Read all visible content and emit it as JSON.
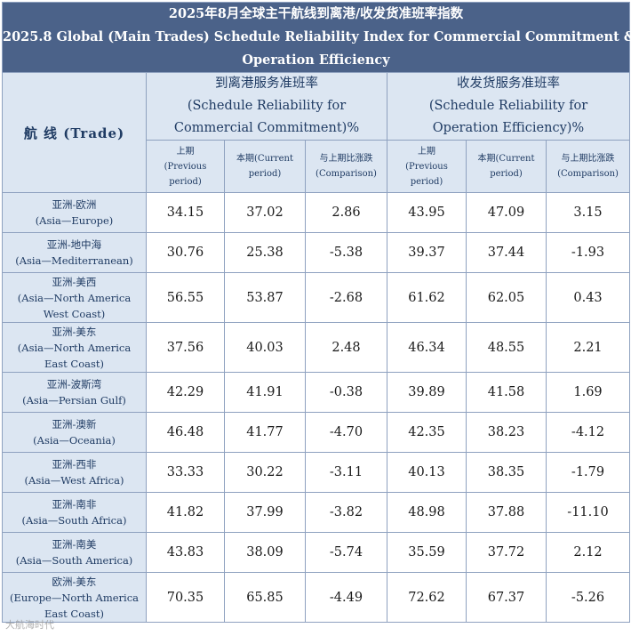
{
  "title": {
    "zh": "2025年8月全球主干航线到离港/收发货准班率指数",
    "en_line1": "2025.8 Global (Main Trades) Schedule Reliability Index for Commercial Commitment &",
    "en_line2": "Operation Efficiency"
  },
  "header": {
    "trade": "航 线 (Trade)",
    "groups": [
      {
        "zh": "到离港服务准班率",
        "en1": "(Schedule Reliability for",
        "en2": "Commercial Commitment)%"
      },
      {
        "zh": "收发货服务准班率",
        "en1": "(Schedule Reliability for",
        "en2": "Operation Efficiency)%"
      }
    ],
    "sub": [
      {
        "l1": "上期",
        "l2": "(Previous",
        "l3": "period)"
      },
      {
        "l1": "本期(Current",
        "l2": "period)",
        "l3": ""
      },
      {
        "l1": "与上期比涨跌",
        "l2": "(Comparison)",
        "l3": ""
      }
    ]
  },
  "rows": [
    {
      "zh": "亚洲-欧洲",
      "en": [
        "(Asia—Europe)"
      ],
      "v": [
        "34.15",
        "37.02",
        "2.86",
        "43.95",
        "47.09",
        "3.15"
      ]
    },
    {
      "zh": "亚洲-地中海",
      "en": [
        "(Asia—Mediterranean)"
      ],
      "v": [
        "30.76",
        "25.38",
        "-5.38",
        "39.37",
        "37.44",
        "-1.93"
      ]
    },
    {
      "zh": "亚洲-美西",
      "en": [
        "(Asia—North America",
        "West Coast)"
      ],
      "v": [
        "56.55",
        "53.87",
        "-2.68",
        "61.62",
        "62.05",
        "0.43"
      ]
    },
    {
      "zh": "亚洲-美东",
      "en": [
        "(Asia—North America",
        "East Coast)"
      ],
      "v": [
        "37.56",
        "40.03",
        "2.48",
        "46.34",
        "48.55",
        "2.21"
      ]
    },
    {
      "zh": "亚洲-波斯湾",
      "en": [
        "(Asia—Persian Gulf)"
      ],
      "v": [
        "42.29",
        "41.91",
        "-0.38",
        "39.89",
        "41.58",
        "1.69"
      ]
    },
    {
      "zh": "亚洲-澳新",
      "en": [
        "(Asia—Oceania)"
      ],
      "v": [
        "46.48",
        "41.77",
        "-4.70",
        "42.35",
        "38.23",
        "-4.12"
      ]
    },
    {
      "zh": "亚洲-西非",
      "en": [
        "(Asia—West Africa)"
      ],
      "v": [
        "33.33",
        "30.22",
        "-3.11",
        "40.13",
        "38.35",
        "-1.79"
      ]
    },
    {
      "zh": "亚洲-南非",
      "en": [
        "(Asia—South Africa)"
      ],
      "v": [
        "41.82",
        "37.99",
        "-3.82",
        "48.98",
        "37.88",
        "-11.10"
      ]
    },
    {
      "zh": "亚洲-南美",
      "en": [
        "(Asia—South America)"
      ],
      "v": [
        "43.83",
        "38.09",
        "-5.74",
        "35.59",
        "37.72",
        "2.12"
      ]
    },
    {
      "zh": "欧洲-美东",
      "en": [
        "(Europe—North America",
        "East Coast)"
      ],
      "v": [
        "70.35",
        "65.85",
        "-4.49",
        "72.62",
        "67.37",
        "-5.26"
      ]
    }
  ],
  "watermark": "大航海时代"
}
